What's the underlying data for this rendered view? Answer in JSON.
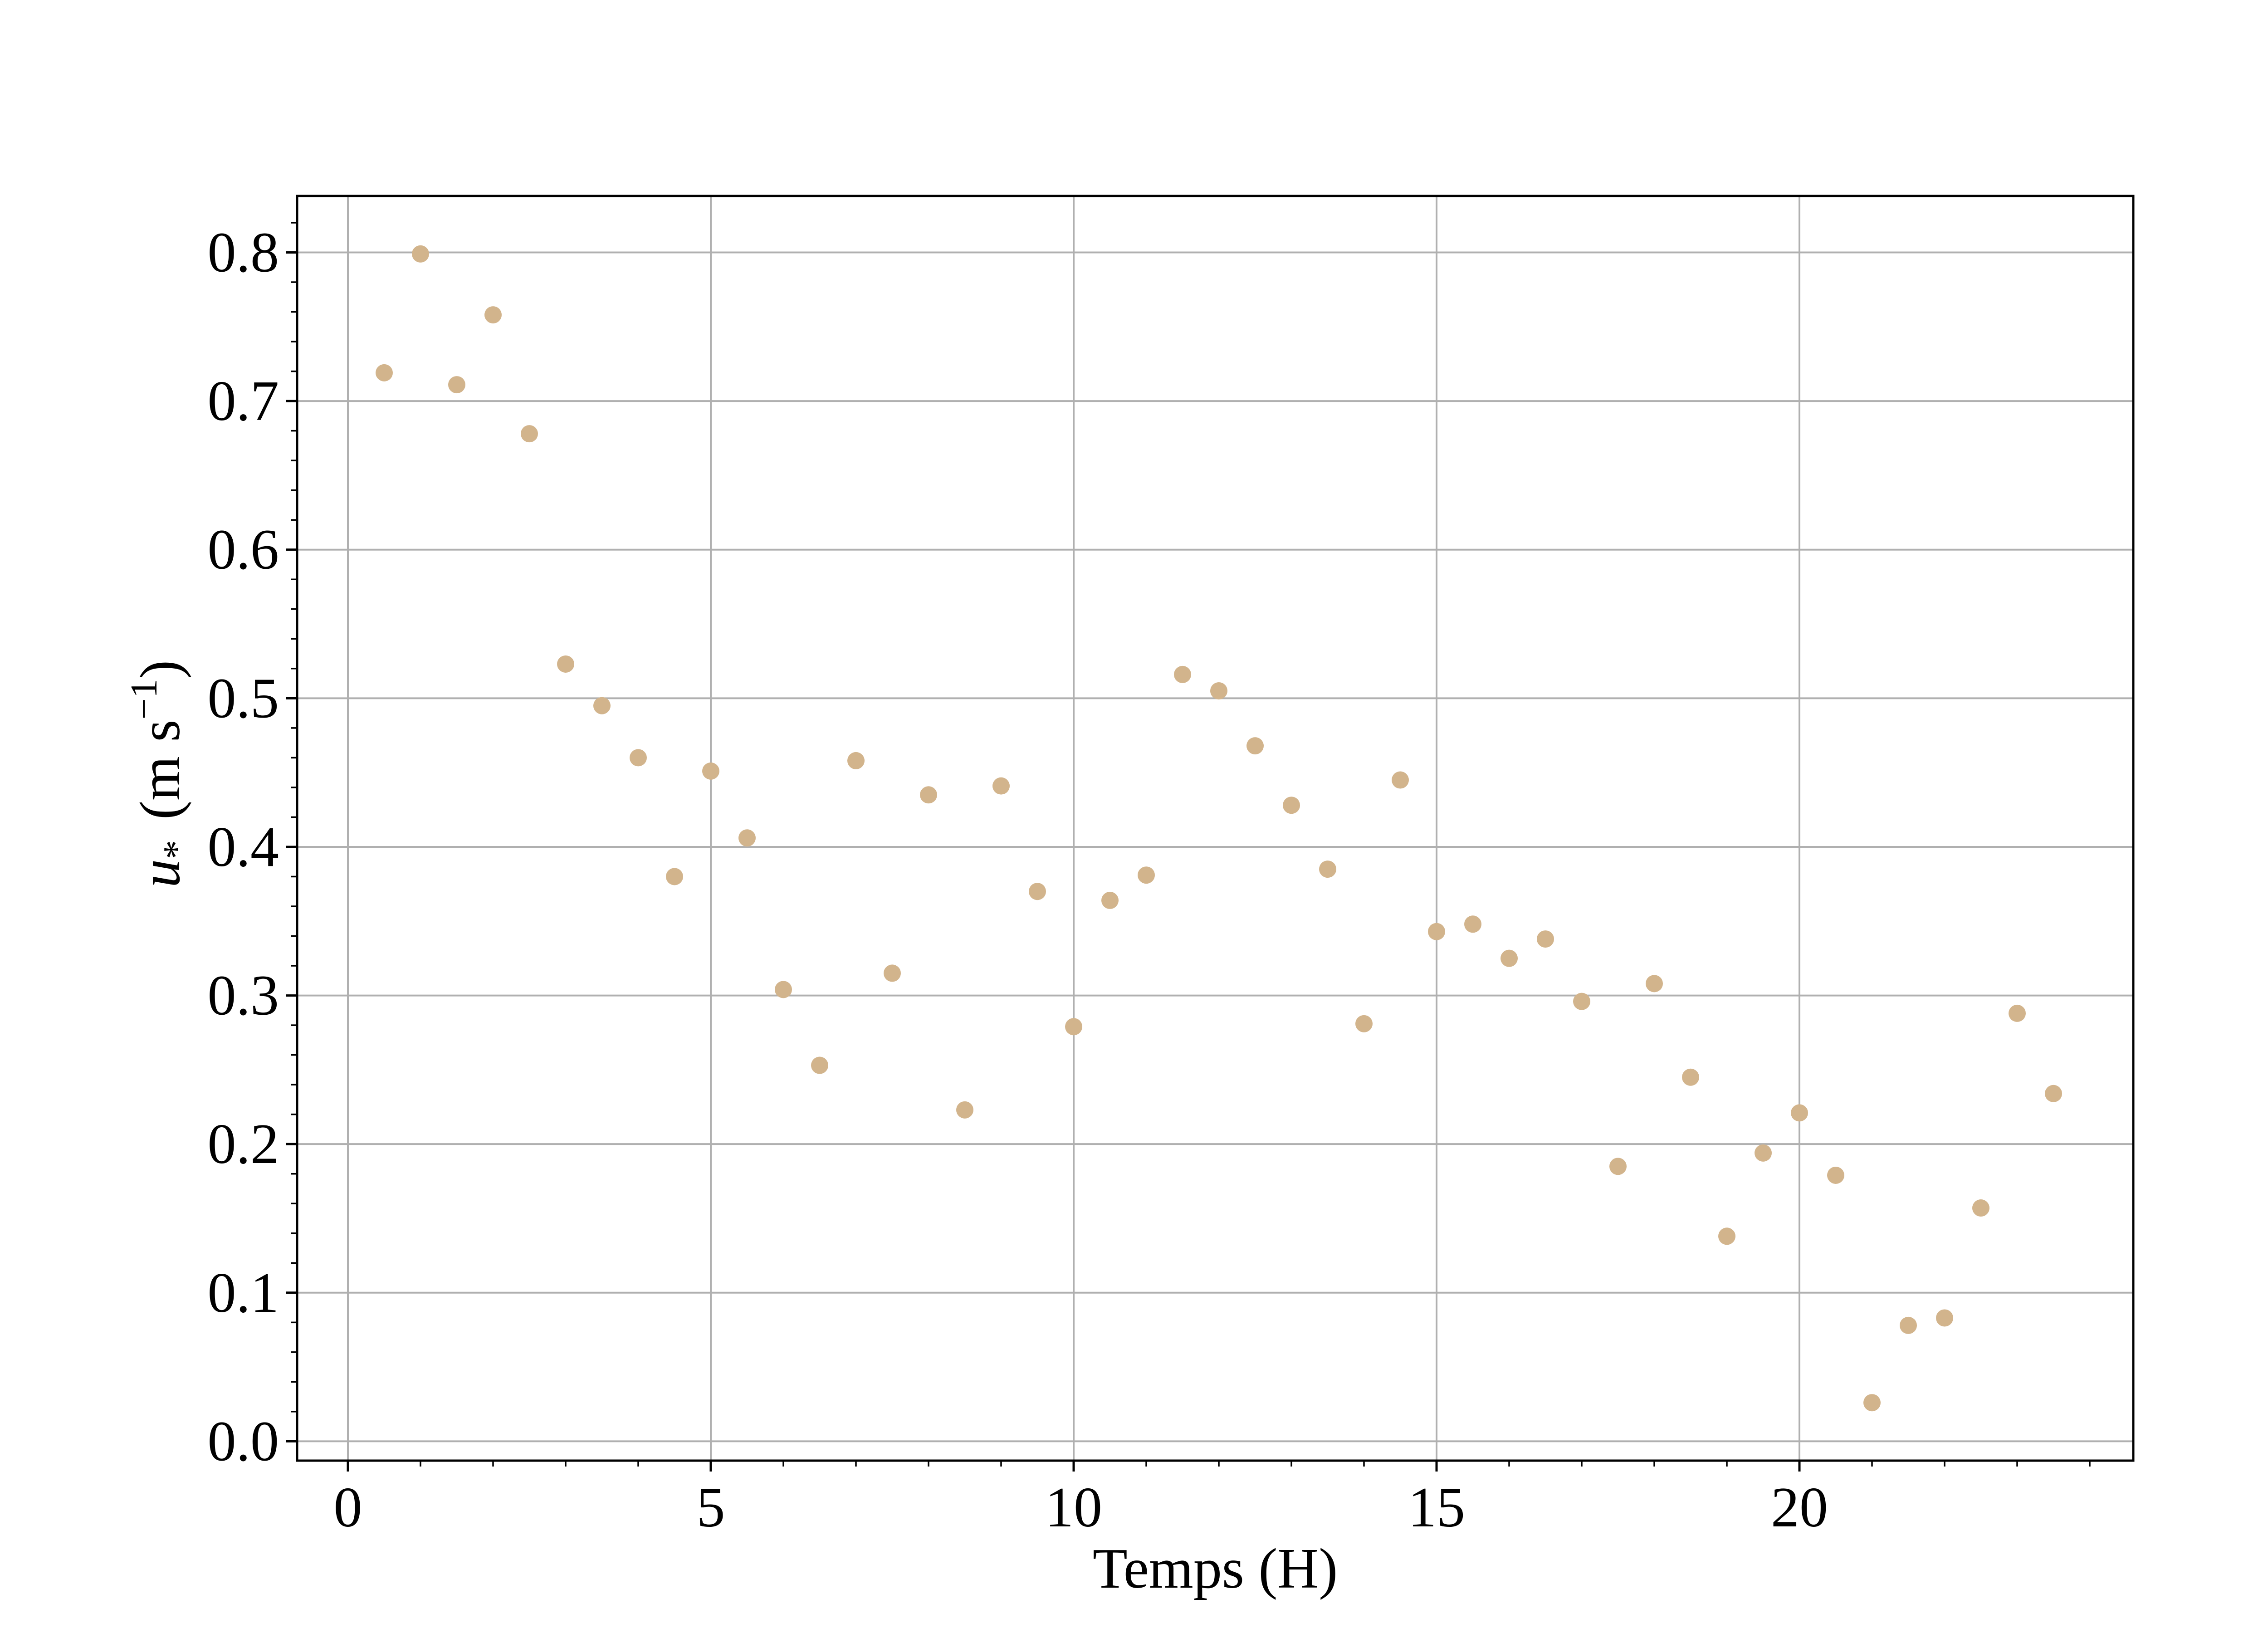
{
  "chart_data": {
    "type": "scatter",
    "xlabel": "Temps (H)",
    "ylabel": {
      "symbol": "u",
      "subscript": "*",
      "unit_open": "(m s",
      "unit_exp": "−1",
      "unit_close": ")"
    },
    "xlim": [
      -0.7,
      24.6
    ],
    "ylim": [
      -0.013,
      0.838
    ],
    "xticks": [
      0,
      5,
      10,
      15,
      20
    ],
    "xtick_labels": [
      "0",
      "5",
      "10",
      "15",
      "20"
    ],
    "yticks": [
      0.0,
      0.1,
      0.2,
      0.3,
      0.4,
      0.5,
      0.6,
      0.7,
      0.8
    ],
    "ytick_labels": [
      "0.0",
      "0.1",
      "0.2",
      "0.3",
      "0.4",
      "0.5",
      "0.6",
      "0.7",
      "0.8"
    ],
    "x_minor_step": 1,
    "y_minor_step": 0.02,
    "grid": true,
    "marker_color": "#d2b48c",
    "series": [
      {
        "x": [
          0.5,
          1.0,
          1.5,
          2.0,
          2.5,
          3.0,
          3.5,
          4.0,
          4.5,
          5.0,
          5.5,
          6.0,
          6.5,
          7.0,
          7.5,
          8.0,
          8.5,
          9.0,
          9.5,
          10.0,
          10.5,
          11.0,
          11.5,
          12.0,
          12.5,
          13.0,
          13.5,
          14.0,
          14.5,
          15.0,
          15.5,
          16.0,
          16.5,
          17.0,
          17.5,
          18.0,
          18.5,
          19.0,
          19.5,
          20.0,
          20.5,
          21.0,
          21.5,
          22.0,
          22.5,
          23.0,
          23.5
        ],
        "y": [
          0.719,
          0.799,
          0.711,
          0.758,
          0.678,
          0.523,
          0.495,
          0.46,
          0.38,
          0.451,
          0.406,
          0.304,
          0.253,
          0.458,
          0.315,
          0.435,
          0.223,
          0.441,
          0.37,
          0.279,
          0.364,
          0.381,
          0.516,
          0.505,
          0.468,
          0.428,
          0.385,
          0.281,
          0.445,
          0.343,
          0.348,
          0.325,
          0.338,
          0.296,
          0.185,
          0.308,
          0.245,
          0.138,
          0.194,
          0.221,
          0.179,
          0.026,
          0.078,
          0.083,
          0.157,
          0.288,
          0.234
        ]
      }
    ]
  }
}
